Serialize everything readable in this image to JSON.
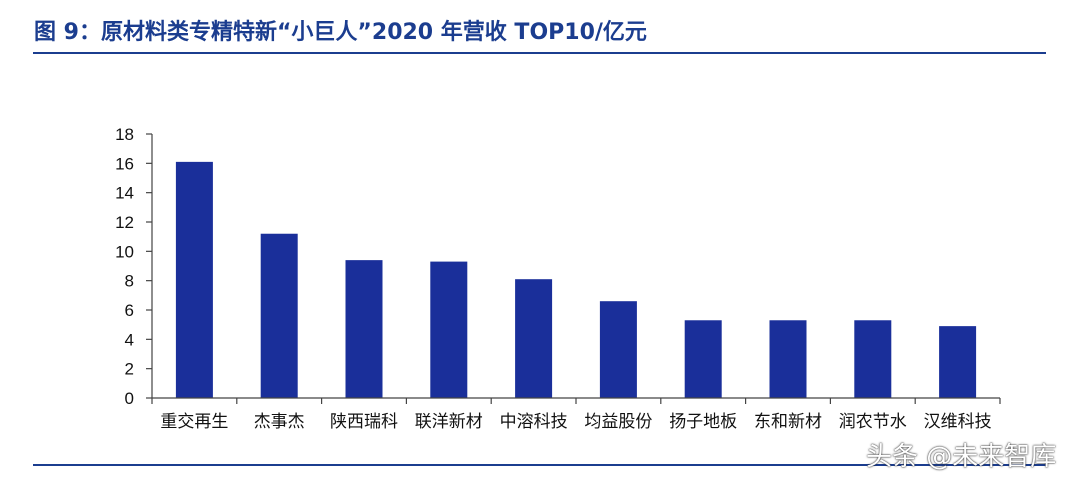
{
  "header": {
    "title": "图 9：原材料类专精特新“小巨人”2020 年营收 TOP10/亿元"
  },
  "watermark": {
    "text": "头条 @未来智库"
  },
  "colors": {
    "bar": "#1a2f9a",
    "title": "#1b3d8f",
    "axis": "#444444",
    "text": "#111111"
  },
  "chart_data": {
    "type": "bar",
    "title": "",
    "xlabel": "",
    "ylabel": "",
    "ylim": [
      0,
      18
    ],
    "yticks": [
      "0",
      "2",
      "4",
      "6",
      "8",
      "10",
      "12",
      "14",
      "16",
      "18"
    ],
    "grid": false,
    "categories": [
      "重交再生",
      "杰事杰",
      "陕西瑞科",
      "联洋新材",
      "中溶科技",
      "均益股份",
      "扬子地板",
      "东和新材",
      "润农节水",
      "汉维科技"
    ],
    "values": [
      16.1,
      11.2,
      9.4,
      9.3,
      8.1,
      6.6,
      5.3,
      5.3,
      5.3,
      4.9
    ]
  }
}
